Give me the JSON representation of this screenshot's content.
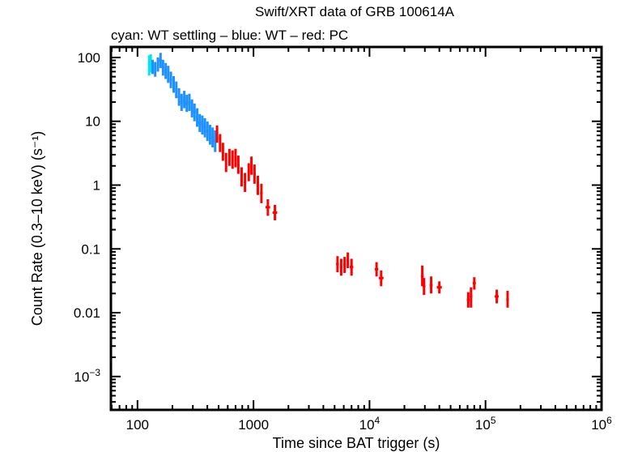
{
  "chart_data": {
    "type": "scatter",
    "title": "Swift/XRT data of GRB 100614A",
    "subtitle": "cyan: WT settling – blue: WT – red: PC",
    "xlabel": "Time since BAT trigger (s)",
    "ylabel": "Count Rate (0.3–10 keV) (s⁻¹)",
    "xscale": "log",
    "yscale": "log",
    "xlim": [
      59,
      1000000
    ],
    "ylim": [
      0.0003,
      146
    ],
    "grid": false,
    "legend": "none (color key given in subtitle)",
    "x_ticks": [
      {
        "value": 100,
        "label": "100"
      },
      {
        "value": 1000,
        "label": "1000"
      },
      {
        "value": 10000,
        "label": "10",
        "exp": "4"
      },
      {
        "value": 100000,
        "label": "10",
        "exp": "5"
      },
      {
        "value": 1000000,
        "label": "10",
        "exp": "6"
      }
    ],
    "y_ticks": [
      {
        "value": 100,
        "label": "100"
      },
      {
        "value": 10,
        "label": "10"
      },
      {
        "value": 1,
        "label": "1"
      },
      {
        "value": 0.1,
        "label": "0.1"
      },
      {
        "value": 0.01,
        "label": "0.01"
      },
      {
        "value": 0.001,
        "label": "10",
        "exp": "−3"
      }
    ],
    "series": [
      {
        "name": "WT settling",
        "color": "#00e5ee",
        "points": [
          {
            "x": 126,
            "y": 75,
            "xerr": 2,
            "ylo": 52,
            "yhi": 108
          },
          {
            "x": 130,
            "y": 80,
            "xerr": 2,
            "ylo": 58,
            "yhi": 112
          }
        ]
      },
      {
        "name": "WT",
        "color": "#1e90ff",
        "points": [
          {
            "x": 135,
            "y": 72,
            "xerr": 3,
            "ylo": 55,
            "yhi": 92
          },
          {
            "x": 142,
            "y": 66,
            "xerr": 3,
            "ylo": 50,
            "yhi": 85
          },
          {
            "x": 150,
            "y": 78,
            "xerr": 3,
            "ylo": 60,
            "yhi": 100
          },
          {
            "x": 158,
            "y": 90,
            "xerr": 4,
            "ylo": 68,
            "yhi": 118
          },
          {
            "x": 166,
            "y": 70,
            "xerr": 4,
            "ylo": 52,
            "yhi": 92
          },
          {
            "x": 175,
            "y": 62,
            "xerr": 4,
            "ylo": 46,
            "yhi": 82
          },
          {
            "x": 184,
            "y": 55,
            "xerr": 4,
            "ylo": 40,
            "yhi": 74
          },
          {
            "x": 194,
            "y": 45,
            "xerr": 5,
            "ylo": 33,
            "yhi": 60
          },
          {
            "x": 205,
            "y": 38,
            "xerr": 5,
            "ylo": 28,
            "yhi": 51
          },
          {
            "x": 216,
            "y": 31,
            "xerr": 5,
            "ylo": 23,
            "yhi": 42
          },
          {
            "x": 228,
            "y": 24,
            "xerr": 6,
            "ylo": 17.5,
            "yhi": 33
          },
          {
            "x": 240,
            "y": 20,
            "xerr": 6,
            "ylo": 14.5,
            "yhi": 27
          },
          {
            "x": 253,
            "y": 22,
            "xerr": 6,
            "ylo": 16,
            "yhi": 30
          },
          {
            "x": 266,
            "y": 19,
            "xerr": 7,
            "ylo": 14,
            "yhi": 26
          },
          {
            "x": 280,
            "y": 20,
            "xerr": 7,
            "ylo": 14.5,
            "yhi": 27
          },
          {
            "x": 295,
            "y": 16,
            "xerr": 7,
            "ylo": 11.5,
            "yhi": 22
          },
          {
            "x": 310,
            "y": 14,
            "xerr": 8,
            "ylo": 10,
            "yhi": 19
          },
          {
            "x": 327,
            "y": 11.5,
            "xerr": 8,
            "ylo": 8.2,
            "yhi": 16
          },
          {
            "x": 344,
            "y": 9.5,
            "xerr": 9,
            "ylo": 6.8,
            "yhi": 13
          },
          {
            "x": 362,
            "y": 8.8,
            "xerr": 9,
            "ylo": 6.2,
            "yhi": 12.3
          },
          {
            "x": 381,
            "y": 8.0,
            "xerr": 10,
            "ylo": 5.6,
            "yhi": 11.2
          },
          {
            "x": 401,
            "y": 7.0,
            "xerr": 10,
            "ylo": 4.9,
            "yhi": 9.9
          },
          {
            "x": 422,
            "y": 6.2,
            "xerr": 11,
            "ylo": 4.3,
            "yhi": 8.8
          },
          {
            "x": 444,
            "y": 5.6,
            "xerr": 11,
            "ylo": 3.9,
            "yhi": 8.0
          },
          {
            "x": 467,
            "y": 4.9,
            "xerr": 12,
            "ylo": 3.3,
            "yhi": 7.2
          }
        ]
      },
      {
        "name": "PC",
        "color": "#ff0000",
        "points": [
          {
            "x": 485,
            "y": 6.3,
            "xerr": 10,
            "ylo": 4.6,
            "yhi": 8.6
          },
          {
            "x": 515,
            "y": 4.6,
            "xerr": 10,
            "ylo": 3.3,
            "yhi": 6.3
          },
          {
            "x": 545,
            "y": 3.3,
            "xerr": 11,
            "ylo": 2.4,
            "yhi": 4.6
          },
          {
            "x": 580,
            "y": 2.3,
            "xerr": 12,
            "ylo": 1.6,
            "yhi": 3.2
          },
          {
            "x": 620,
            "y": 2.7,
            "xerr": 13,
            "ylo": 2.0,
            "yhi": 3.7
          },
          {
            "x": 660,
            "y": 2.5,
            "xerr": 14,
            "ylo": 1.8,
            "yhi": 3.5
          },
          {
            "x": 700,
            "y": 2.7,
            "xerr": 15,
            "ylo": 1.9,
            "yhi": 3.7
          },
          {
            "x": 740,
            "y": 2.1,
            "xerr": 16,
            "ylo": 1.5,
            "yhi": 2.9
          },
          {
            "x": 790,
            "y": 1.35,
            "xerr": 18,
            "ylo": 0.95,
            "yhi": 1.9
          },
          {
            "x": 845,
            "y": 1.1,
            "xerr": 20,
            "ylo": 0.78,
            "yhi": 1.55
          },
          {
            "x": 910,
            "y": 1.6,
            "xerr": 20,
            "ylo": 1.15,
            "yhi": 2.2
          },
          {
            "x": 960,
            "y": 2.0,
            "xerr": 22,
            "ylo": 1.45,
            "yhi": 2.8
          },
          {
            "x": 1020,
            "y": 1.5,
            "xerr": 25,
            "ylo": 1.05,
            "yhi": 2.1
          },
          {
            "x": 1090,
            "y": 1.0,
            "xerr": 28,
            "ylo": 0.7,
            "yhi": 1.4
          },
          {
            "x": 1170,
            "y": 0.75,
            "xerr": 30,
            "ylo": 0.52,
            "yhi": 1.05
          },
          {
            "x": 1330,
            "y": 0.45,
            "xerr": 60,
            "ylo": 0.33,
            "yhi": 0.6
          },
          {
            "x": 1530,
            "y": 0.37,
            "xerr": 70,
            "ylo": 0.28,
            "yhi": 0.49
          },
          {
            "x": 5300,
            "y": 0.058,
            "xerr": 150,
            "ylo": 0.043,
            "yhi": 0.077
          },
          {
            "x": 5700,
            "y": 0.052,
            "xerr": 150,
            "ylo": 0.038,
            "yhi": 0.07
          },
          {
            "x": 6100,
            "y": 0.056,
            "xerr": 150,
            "ylo": 0.042,
            "yhi": 0.075
          },
          {
            "x": 6500,
            "y": 0.066,
            "xerr": 150,
            "ylo": 0.05,
            "yhi": 0.088
          },
          {
            "x": 7000,
            "y": 0.052,
            "xerr": 250,
            "ylo": 0.038,
            "yhi": 0.07
          },
          {
            "x": 11500,
            "y": 0.048,
            "xerr": 400,
            "ylo": 0.037,
            "yhi": 0.062
          },
          {
            "x": 12600,
            "y": 0.035,
            "xerr": 600,
            "ylo": 0.026,
            "yhi": 0.046
          },
          {
            "x": 28500,
            "y": 0.037,
            "xerr": 800,
            "ylo": 0.026,
            "yhi": 0.055
          },
          {
            "x": 29500,
            "y": 0.026,
            "xerr": 800,
            "ylo": 0.019,
            "yhi": 0.035
          },
          {
            "x": 34000,
            "y": 0.027,
            "xerr": 1000,
            "ylo": 0.02,
            "yhi": 0.037
          },
          {
            "x": 40000,
            "y": 0.025,
            "xerr": 2000,
            "ylo": 0.02,
            "yhi": 0.031
          },
          {
            "x": 71000,
            "y": 0.016,
            "xerr": 2000,
            "ylo": 0.012,
            "yhi": 0.021
          },
          {
            "x": 75000,
            "y": 0.018,
            "xerr": 2000,
            "ylo": 0.012,
            "yhi": 0.025
          },
          {
            "x": 80000,
            "y": 0.029,
            "xerr": 2500,
            "ylo": 0.023,
            "yhi": 0.036
          },
          {
            "x": 125000,
            "y": 0.018,
            "xerr": 5000,
            "ylo": 0.014,
            "yhi": 0.023
          },
          {
            "x": 155000,
            "y": 0.016,
            "xerr": 4000,
            "ylo": 0.012,
            "yhi": 0.022
          }
        ]
      }
    ]
  }
}
